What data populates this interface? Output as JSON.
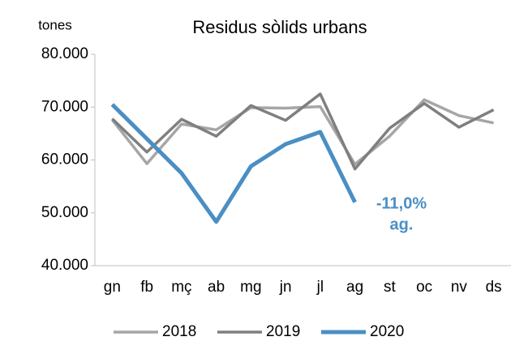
{
  "chart_data": {
    "type": "line",
    "title": "Residus sòlids urbans",
    "ylabel": "tones",
    "categories": [
      "gn",
      "fb",
      "mç",
      "ab",
      "mg",
      "jn",
      "jl",
      "ag",
      "st",
      "oc",
      "nv",
      "ds"
    ],
    "series": [
      {
        "name": "2018",
        "color": "#a6a6a6",
        "values": [
          67600,
          59300,
          66800,
          65700,
          69900,
          69800,
          70100,
          59200,
          64500,
          71400,
          68400,
          67000
        ]
      },
      {
        "name": "2019",
        "color": "#7f7f7f",
        "values": [
          67800,
          61500,
          67700,
          64500,
          70300,
          67500,
          72500,
          58300,
          66000,
          70700,
          66200,
          69500
        ]
      },
      {
        "name": "2020",
        "color": "#4a8fc4",
        "values": [
          70500,
          64000,
          57500,
          48300,
          58800,
          63000,
          65300,
          52000,
          null,
          null,
          null,
          null
        ]
      }
    ],
    "ylim": [
      40000,
      80000
    ],
    "yticks": [
      {
        "value": 40000,
        "label": "40.000"
      },
      {
        "value": 50000,
        "label": "50.000"
      },
      {
        "value": 60000,
        "label": "60.000"
      },
      {
        "value": 70000,
        "label": "70.000"
      },
      {
        "value": 80000,
        "label": "80.000"
      }
    ],
    "annotations": [
      "-11,0%",
      "ag."
    ],
    "legend": "bottom"
  }
}
